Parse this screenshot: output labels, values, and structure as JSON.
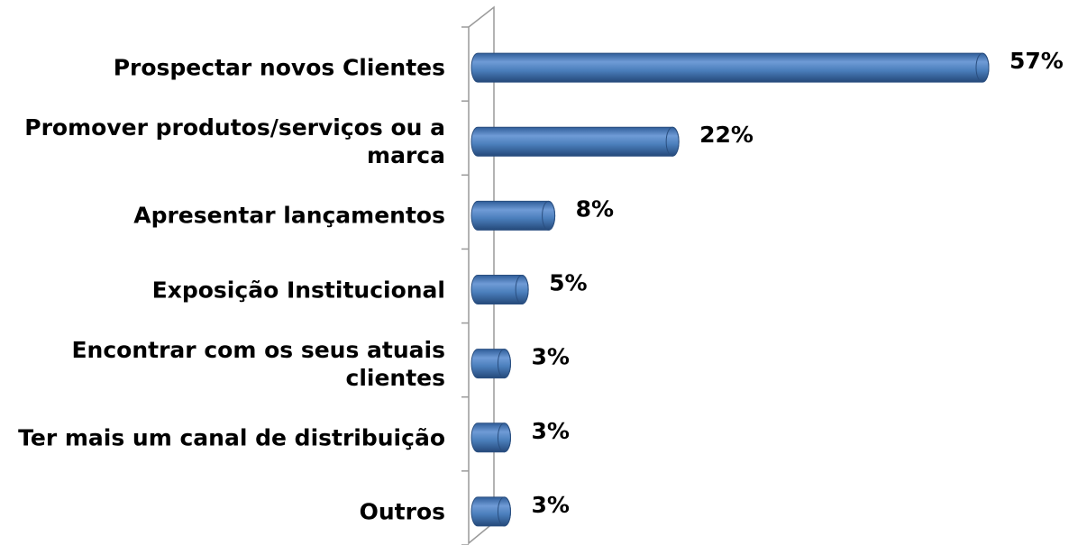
{
  "chart_data": {
    "type": "bar",
    "orientation": "horizontal",
    "categories": [
      "Prospectar novos Clientes",
      "Promover produtos/serviços ou a marca",
      "Apresentar lançamentos",
      "Exposição Institucional",
      "Encontrar com os seus atuais clientes",
      "Ter mais um canal de distribuição",
      "Outros"
    ],
    "values": [
      57,
      22,
      8,
      5,
      3,
      3,
      3
    ],
    "value_labels": [
      "57%",
      "22%",
      "8%",
      "5%",
      "3%",
      "3%",
      "3%"
    ],
    "color": "#4a7ebb"
  }
}
